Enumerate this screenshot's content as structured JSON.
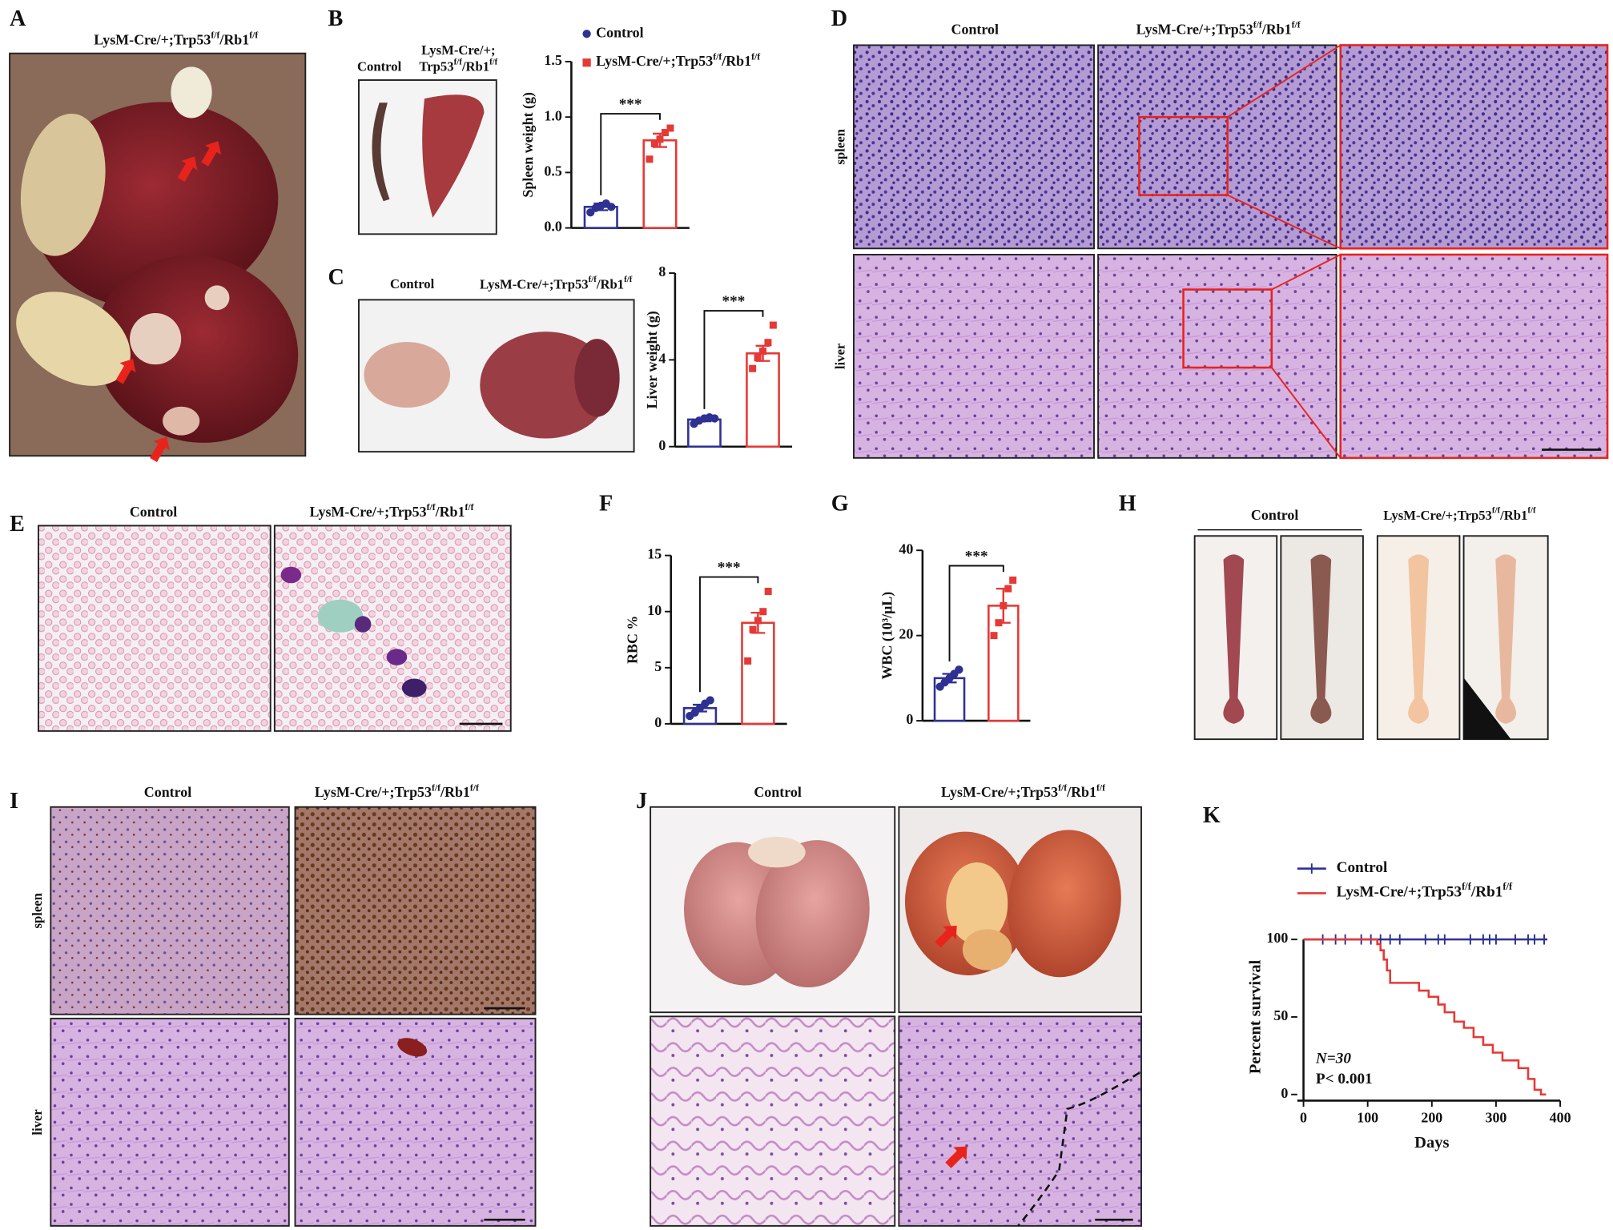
{
  "panel_labels": [
    "A",
    "B",
    "C",
    "D",
    "E",
    "F",
    "G",
    "H",
    "I",
    "J",
    "K"
  ],
  "A": {
    "genotype": [
      "LysM-Cre/+;Trp53",
      "f/f",
      "/Rb1",
      "f/f"
    ]
  },
  "B": {
    "control": "Control",
    "genotype_line1": "LysM-Cre/+;",
    "genotype_line2": [
      "Trp53",
      "f/f",
      "/Rb1",
      "f/f"
    ]
  },
  "C": {
    "control": "Control",
    "genotype": [
      "LysM-Cre/+;Trp53",
      "f/f",
      "/Rb1",
      "f/f"
    ]
  },
  "D": {
    "control": "Control",
    "genotype": [
      "LysM-Cre/+;Trp53",
      "f/f",
      "/Rb1",
      "f/f"
    ],
    "rows": [
      "spleen",
      "liver"
    ]
  },
  "E": {
    "control": "Control",
    "genotype": [
      "LysM-Cre/+;Trp53",
      "f/f",
      "/Rb1",
      "f/f"
    ]
  },
  "H": {
    "control": "Control",
    "genotype": [
      "LysM-Cre/+;Trp53",
      "f/f",
      "/Rb1",
      "f/f"
    ]
  },
  "I": {
    "control": "Control",
    "genotype": [
      "LysM-Cre/+;Trp53",
      "f/f",
      "/Rb1",
      "f/f"
    ],
    "rows": [
      "spleen",
      "liver"
    ]
  },
  "J": {
    "control": "Control",
    "genotype": [
      "LysM-Cre/+;Trp53",
      "f/f",
      "/Rb1",
      "f/f"
    ]
  },
  "chart_data": [
    {
      "type": "bar",
      "ylabel": "Spleen weight (g)",
      "ylim": [
        0,
        1.5
      ],
      "yticks": [
        {
          "value": 0,
          "label": "0.0"
        },
        0.5,
        {
          "value": 1,
          "label": "1.0"
        },
        1.5
      ],
      "significance": "***",
      "legend": "top",
      "series": [
        {
          "name": "Control",
          "color": "#2e3192",
          "marker": "circle",
          "values": [
            0.19
          ],
          "errors": [
            0.03
          ],
          "points": [
            0.14,
            0.18,
            0.2,
            0.22,
            0.19
          ]
        },
        {
          "name": [
            "LysM-Cre/+;Trp53",
            "f/f",
            "/Rb1",
            "f/f"
          ],
          "color": "#e53935",
          "marker": "square",
          "values": [
            0.79
          ],
          "errors": [
            0.06
          ],
          "points": [
            0.62,
            0.76,
            0.8,
            0.86,
            0.9
          ]
        }
      ]
    },
    {
      "type": "bar",
      "ylabel": "Liver weight (g)",
      "ylim": [
        0,
        8
      ],
      "yticks": [
        0,
        4,
        8
      ],
      "significance": "***",
      "series": [
        {
          "color": "#2e3192",
          "marker": "circle",
          "values": [
            1.25
          ],
          "errors": [
            0.08
          ],
          "points": [
            1.05,
            1.2,
            1.3,
            1.35,
            1.3
          ]
        },
        {
          "color": "#e53935",
          "marker": "square",
          "values": [
            4.3
          ],
          "errors": [
            0.35
          ],
          "points": [
            3.6,
            4.1,
            4.4,
            4.8,
            5.6
          ]
        }
      ]
    },
    {
      "type": "bar",
      "ylabel": "RBC %",
      "ylim": [
        0,
        15
      ],
      "yticks": [
        0,
        5,
        10,
        15
      ],
      "significance": "***",
      "series": [
        {
          "color": "#2e3192",
          "marker": "circle",
          "values": [
            1.4
          ],
          "errors": [
            0.3
          ],
          "points": [
            0.7,
            1.0,
            1.4,
            1.8,
            2.1
          ]
        },
        {
          "color": "#e53935",
          "marker": "square",
          "values": [
            9.0
          ],
          "errors": [
            0.9
          ],
          "points": [
            5.6,
            8.4,
            9.2,
            10.0,
            11.8
          ]
        }
      ]
    },
    {
      "type": "bar",
      "ylabel": "WBC (10³/μL)",
      "ylim": [
        0,
        40
      ],
      "yticks": [
        0,
        20,
        40
      ],
      "significance": "***",
      "series": [
        {
          "color": "#2e3192",
          "marker": "circle",
          "values": [
            10
          ],
          "errors": [
            1
          ],
          "points": [
            8,
            9,
            10,
            11,
            12
          ]
        },
        {
          "color": "#e53935",
          "marker": "square",
          "values": [
            27
          ],
          "errors": [
            4
          ],
          "points": [
            20,
            23,
            27,
            31,
            33
          ]
        }
      ]
    },
    {
      "type": "line",
      "xlabel": "Days",
      "ylabel": "Percent survival",
      "xlim": [
        0,
        400
      ],
      "xticks": [
        0,
        100,
        200,
        300,
        400
      ],
      "ylim": [
        0,
        100
      ],
      "yticks": [
        0,
        50,
        100
      ],
      "annotations": [
        "N=30",
        "P< 0.001"
      ],
      "legend": "top-left",
      "series": [
        {
          "name": "Control",
          "color": "#2e3192",
          "x": [
            0,
            380
          ],
          "y": [
            100,
            100
          ],
          "censored": [
            30,
            50,
            65,
            90,
            105,
            120,
            135,
            150,
            190,
            210,
            220,
            260,
            280,
            290,
            300,
            330,
            350,
            360,
            375
          ]
        },
        {
          "name": [
            "LysM-Cre/+;Trp53",
            "f/f",
            "/Rb1",
            "f/f"
          ],
          "color": "#e53935",
          "x": [
            0,
            115,
            115,
            120,
            120,
            125,
            125,
            130,
            130,
            135,
            135,
            180,
            180,
            195,
            195,
            210,
            210,
            220,
            220,
            235,
            235,
            250,
            250,
            265,
            265,
            280,
            280,
            295,
            295,
            310,
            310,
            335,
            335,
            350,
            350,
            360,
            360,
            370,
            370,
            378
          ],
          "y": [
            100,
            100,
            97,
            97,
            93,
            93,
            87,
            87,
            80,
            80,
            72,
            72,
            67,
            67,
            63,
            63,
            58,
            58,
            53,
            53,
            47,
            47,
            43,
            43,
            37,
            37,
            32,
            32,
            27,
            27,
            22,
            22,
            17,
            17,
            10,
            10,
            3,
            3,
            0,
            0
          ]
        }
      ]
    }
  ]
}
